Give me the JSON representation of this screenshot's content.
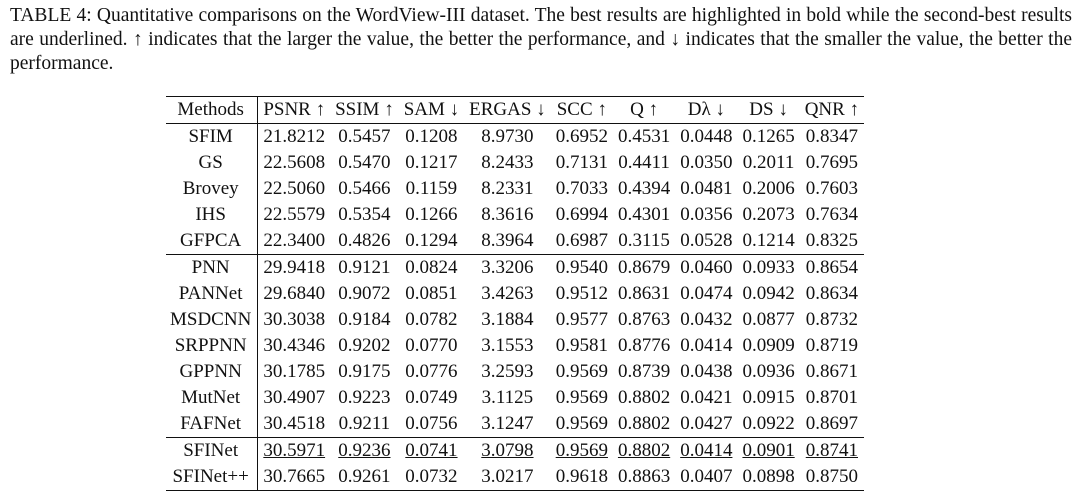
{
  "caption": "TABLE 4: Quantitative comparisons on the WordView-III dataset. The best results are highlighted in bold while the second-best results are underlined. ↑ indicates that the larger the value, the better the performance, and ↓ indicates that the smaller the value, the better the performance.",
  "table": {
    "header": [
      "Methods",
      "PSNR ↑",
      "SSIM ↑",
      "SAM ↓",
      "ERGAS ↓",
      "SCC ↑",
      "Q ↑",
      "Dλ ↓",
      "DS ↓",
      "QNR ↑"
    ],
    "groups": [
      [
        [
          "SFIM",
          "21.8212",
          "0.5457",
          "0.1208",
          "8.9730",
          "0.6952",
          "0.4531",
          "0.0448",
          "0.1265",
          "0.8347"
        ],
        [
          "GS",
          "22.5608",
          "0.5470",
          "0.1217",
          "8.2433",
          "0.7131",
          "0.4411",
          "0.0350",
          "0.2011",
          "0.7695"
        ],
        [
          "Brovey",
          "22.5060",
          "0.5466",
          "0.1159",
          "8.2331",
          "0.7033",
          "0.4394",
          "0.0481",
          "0.2006",
          "0.7603"
        ],
        [
          "IHS",
          "22.5579",
          "0.5354",
          "0.1266",
          "8.3616",
          "0.6994",
          "0.4301",
          "0.0356",
          "0.2073",
          "0.7634"
        ],
        [
          "GFPCA",
          "22.3400",
          "0.4826",
          "0.1294",
          "8.3964",
          "0.6987",
          "0.3115",
          "0.0528",
          "0.1214",
          "0.8325"
        ]
      ],
      [
        [
          "PNN",
          "29.9418",
          "0.9121",
          "0.0824",
          "3.3206",
          "0.9540",
          "0.8679",
          "0.0460",
          "0.0933",
          "0.8654"
        ],
        [
          "PANNet",
          "29.6840",
          "0.9072",
          "0.0851",
          "3.4263",
          "0.9512",
          "0.8631",
          "0.0474",
          "0.0942",
          "0.8634"
        ],
        [
          "MSDCNN",
          "30.3038",
          "0.9184",
          "0.0782",
          "3.1884",
          "0.9577",
          "0.8763",
          "0.0432",
          "0.0877",
          "0.8732"
        ],
        [
          "SRPPNN",
          "30.4346",
          "0.9202",
          "0.0770",
          "3.1553",
          "0.9581",
          "0.8776",
          "0.0414",
          "0.0909",
          "0.8719"
        ],
        [
          "GPPNN",
          "30.1785",
          "0.9175",
          "0.0776",
          "3.2593",
          "0.9569",
          "0.8739",
          "0.0438",
          "0.0936",
          "0.8671"
        ],
        [
          "MutNet",
          "30.4907",
          "0.9223",
          "0.0749",
          "3.1125",
          "0.9569",
          "0.8802",
          "0.0421",
          "0.0915",
          "0.8701"
        ],
        [
          "FAFNet",
          "30.4518",
          "0.9211",
          "0.0756",
          "3.1247",
          "0.9569",
          "0.8802",
          "0.0427",
          "0.0922",
          "0.8697"
        ]
      ],
      [
        [
          "SFINet",
          "30.5971",
          "0.9236",
          "0.0741",
          "3.0798",
          "0.9569",
          "0.8802",
          "0.0414",
          "0.0901",
          "0.8741"
        ],
        [
          "SFINet++",
          "30.7665",
          "0.9261",
          "0.0732",
          "3.0217",
          "0.9618",
          "0.8863",
          "0.0407",
          "0.0898",
          "0.8750"
        ]
      ]
    ]
  }
}
